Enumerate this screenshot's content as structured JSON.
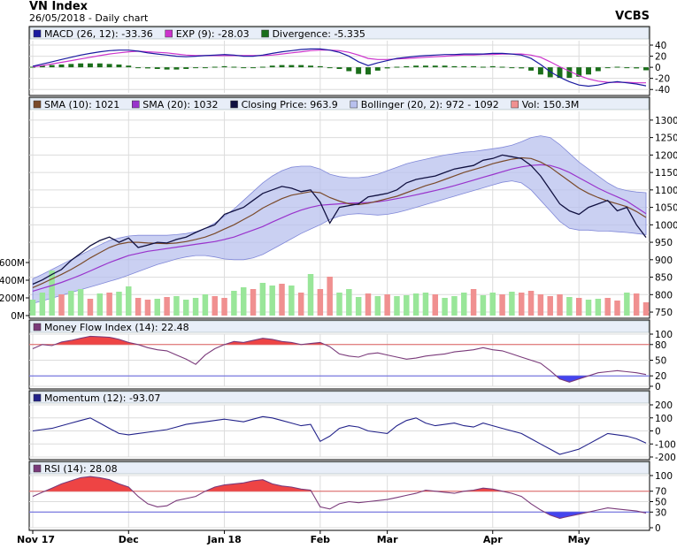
{
  "header": {
    "title": "VN Index",
    "subtitle": "26/05/2018 - Daily chart",
    "brand": "VCBS"
  },
  "colors": {
    "pane_bg": "#ffffff",
    "grid": "#dcdcdc",
    "legend_bg": "#e8eef8",
    "macd": "#1a1aa0",
    "exp": "#cc33cc",
    "divergence": "#1a6e1a",
    "sma10": "#7a4a2a",
    "sma20": "#9933cc",
    "close": "#101040",
    "bollinger_fill": "#b8c0ee",
    "bollinger_line": "#8088d8",
    "vol_up": "#99e699",
    "vol_down": "#f09090",
    "mfi_line": "#7a3a7a",
    "mfi_fill_hi": "#ee4444",
    "mfi_fill_lo": "#4444ee",
    "momentum": "#22228a",
    "rsi_line": "#7a3a7a",
    "hline_red": "#e06060",
    "hline_blue": "#6060e0"
  },
  "chart_data": [
    {
      "type": "line",
      "pane": "macd",
      "legend": [
        {
          "key": "macd",
          "label": "MACD (26, 12): -33.36"
        },
        {
          "key": "exp",
          "label": "EXP (9): -28.03"
        },
        {
          "key": "divergence",
          "label": "Divergence: -5.335"
        }
      ],
      "yticks": [
        40,
        20,
        0,
        -20,
        -40
      ],
      "ylim": [
        -46,
        48
      ],
      "series": [
        {
          "key": "macd",
          "values": [
            2,
            6,
            10,
            14,
            18,
            22,
            25,
            28,
            30,
            31,
            31,
            29,
            26,
            24,
            22,
            20,
            19,
            20,
            21,
            22,
            23,
            22,
            20,
            20,
            22,
            25,
            28,
            30,
            32,
            33,
            33,
            31,
            27,
            20,
            10,
            3,
            8,
            12,
            16,
            18,
            20,
            21,
            22,
            23,
            23,
            24,
            24,
            24,
            25,
            25,
            24,
            22,
            16,
            5,
            -8,
            -18,
            -26,
            -32,
            -34,
            -32,
            -28,
            -26,
            -28,
            -30,
            -33.36
          ]
        },
        {
          "key": "exp",
          "values": [
            1,
            3,
            6,
            9,
            12,
            15,
            18,
            21,
            24,
            26,
            28,
            29,
            28,
            27,
            26,
            24,
            22,
            21,
            21,
            21,
            21,
            21,
            21,
            21,
            21,
            22,
            24,
            26,
            28,
            30,
            31,
            31,
            30,
            27,
            22,
            16,
            14,
            14,
            15,
            16,
            17,
            18,
            19,
            20,
            21,
            22,
            22,
            23,
            23,
            24,
            24,
            24,
            22,
            18,
            10,
            1,
            -7,
            -15,
            -21,
            -25,
            -27,
            -27,
            -27,
            -28,
            -28.03
          ]
        },
        {
          "key": "divergence",
          "type": "bar",
          "values": [
            1,
            3,
            4,
            5,
            6,
            7,
            7,
            7,
            6,
            5,
            3,
            0,
            -2,
            -3,
            -4,
            -4,
            -3,
            -1,
            0,
            1,
            2,
            1,
            -1,
            -1,
            1,
            3,
            4,
            4,
            4,
            3,
            2,
            0,
            -3,
            -7,
            -12,
            -13,
            -6,
            -2,
            1,
            2,
            3,
            3,
            3,
            3,
            2,
            2,
            2,
            1,
            2,
            1,
            0,
            -2,
            -6,
            -13,
            -18,
            -19,
            -19,
            -17,
            -13,
            -7,
            -1,
            1,
            -1,
            -2,
            -5.335
          ]
        }
      ]
    },
    {
      "type": "line",
      "pane": "price",
      "legend": [
        {
          "key": "sma10",
          "label": "SMA (10): 1021"
        },
        {
          "key": "sma20",
          "label": "SMA (20): 1032"
        },
        {
          "key": "close",
          "label": "Closing Price: 963.9"
        },
        {
          "key": "bollinger_fill",
          "label": "Bollinger (20, 2): 972 - 1092"
        },
        {
          "key": "vol_down",
          "label": "Vol: 150.3M"
        }
      ],
      "yticks_right": [
        1300,
        1250,
        1200,
        1150,
        1100,
        1050,
        1000,
        950,
        900,
        850,
        800,
        750
      ],
      "ylim": [
        740,
        1325
      ],
      "vol_ticks_left": [
        "600M",
        "400M",
        "200M",
        "0M"
      ],
      "vol_ticks_values": [
        600,
        400,
        200,
        0
      ],
      "vol_max_label": 600,
      "series": [
        {
          "key": "close",
          "values": [
            830,
            842,
            858,
            872,
            898,
            918,
            940,
            955,
            965,
            950,
            962,
            935,
            942,
            950,
            948,
            958,
            965,
            978,
            990,
            1000,
            1030,
            1040,
            1050,
            1070,
            1090,
            1100,
            1110,
            1105,
            1095,
            1100,
            1065,
            1005,
            1050,
            1055,
            1060,
            1080,
            1085,
            1090,
            1100,
            1120,
            1130,
            1135,
            1140,
            1150,
            1160,
            1165,
            1170,
            1185,
            1190,
            1200,
            1195,
            1190,
            1170,
            1140,
            1100,
            1060,
            1040,
            1030,
            1050,
            1060,
            1070,
            1040,
            1050,
            1000,
            963.9
          ]
        },
        {
          "key": "sma10",
          "values": [
            820,
            832,
            845,
            858,
            872,
            888,
            905,
            920,
            935,
            945,
            950,
            950,
            948,
            947,
            946,
            948,
            952,
            958,
            965,
            975,
            988,
            1000,
            1015,
            1030,
            1048,
            1062,
            1075,
            1085,
            1090,
            1095,
            1092,
            1078,
            1068,
            1060,
            1058,
            1062,
            1068,
            1075,
            1082,
            1092,
            1102,
            1112,
            1120,
            1130,
            1140,
            1150,
            1158,
            1166,
            1175,
            1182,
            1188,
            1192,
            1190,
            1180,
            1165,
            1145,
            1125,
            1105,
            1090,
            1078,
            1068,
            1060,
            1052,
            1038,
            1021
          ]
        },
        {
          "key": "sma20",
          "values": [
            810,
            818,
            826,
            835,
            845,
            856,
            868,
            880,
            892,
            902,
            912,
            918,
            924,
            928,
            932,
            936,
            940,
            944,
            948,
            952,
            958,
            965,
            975,
            985,
            995,
            1008,
            1020,
            1032,
            1042,
            1050,
            1056,
            1058,
            1060,
            1062,
            1063,
            1064,
            1066,
            1070,
            1075,
            1080,
            1086,
            1092,
            1098,
            1105,
            1112,
            1120,
            1128,
            1136,
            1144,
            1152,
            1160,
            1166,
            1170,
            1172,
            1170,
            1162,
            1150,
            1135,
            1120,
            1105,
            1092,
            1080,
            1068,
            1050,
            1032
          ]
        },
        {
          "key": "boll_upper",
          "values": [
            845,
            858,
            872,
            886,
            900,
            914,
            928,
            942,
            955,
            962,
            968,
            970,
            970,
            970,
            970,
            972,
            975,
            980,
            990,
            1005,
            1025,
            1045,
            1070,
            1095,
            1120,
            1140,
            1155,
            1165,
            1168,
            1168,
            1160,
            1145,
            1138,
            1135,
            1135,
            1138,
            1145,
            1155,
            1165,
            1175,
            1182,
            1188,
            1194,
            1200,
            1204,
            1208,
            1210,
            1214,
            1218,
            1222,
            1228,
            1238,
            1250,
            1255,
            1250,
            1230,
            1205,
            1180,
            1160,
            1140,
            1120,
            1105,
            1098,
            1094,
            1092
          ]
        },
        {
          "key": "boll_lower",
          "values": [
            775,
            782,
            790,
            798,
            806,
            814,
            822,
            830,
            838,
            846,
            856,
            866,
            876,
            886,
            894,
            902,
            908,
            912,
            912,
            908,
            902,
            900,
            900,
            905,
            915,
            930,
            945,
            960,
            975,
            988,
            1000,
            1015,
            1025,
            1030,
            1032,
            1030,
            1028,
            1030,
            1035,
            1042,
            1050,
            1058,
            1066,
            1074,
            1082,
            1090,
            1098,
            1106,
            1114,
            1122,
            1126,
            1120,
            1100,
            1070,
            1040,
            1010,
            990,
            985,
            985,
            982,
            982,
            980,
            978,
            975,
            972
          ]
        },
        {
          "key": "volume_M",
          "type": "bar",
          "values": [
            180,
            260,
            510,
            240,
            280,
            300,
            190,
            250,
            260,
            270,
            330,
            200,
            180,
            190,
            210,
            220,
            180,
            200,
            240,
            220,
            200,
            280,
            320,
            300,
            370,
            340,
            360,
            340,
            260,
            470,
            300,
            440,
            260,
            300,
            210,
            250,
            220,
            240,
            220,
            230,
            250,
            260,
            240,
            200,
            220,
            260,
            300,
            230,
            260,
            240,
            270,
            260,
            280,
            240,
            220,
            240,
            210,
            200,
            180,
            190,
            200,
            170,
            260,
            250,
            150.3
          ]
        },
        {
          "key": "volume_up",
          "values": [
            1,
            1,
            1,
            0,
            1,
            1,
            0,
            1,
            0,
            1,
            1,
            0,
            0,
            1,
            0,
            1,
            1,
            1,
            1,
            0,
            0,
            1,
            1,
            0,
            1,
            1,
            0,
            1,
            0,
            1,
            0,
            0,
            1,
            1,
            1,
            0,
            1,
            0,
            1,
            1,
            1,
            1,
            0,
            1,
            1,
            1,
            0,
            1,
            1,
            0,
            1,
            0,
            0,
            0,
            0,
            0,
            1,
            0,
            1,
            1,
            0,
            0,
            1,
            0,
            0
          ]
        }
      ]
    },
    {
      "type": "area",
      "pane": "mfi",
      "legend": [
        {
          "key": "mfi_line",
          "label": "Money Flow Index (14): 22.48"
        }
      ],
      "yticks": [
        100,
        80,
        50,
        20,
        0
      ],
      "ylim": [
        0,
        100
      ],
      "levels": {
        "upper": 80,
        "lower": 20
      },
      "series": [
        {
          "key": "mfi",
          "values": [
            72,
            80,
            78,
            85,
            88,
            92,
            96,
            95,
            94,
            90,
            84,
            80,
            74,
            70,
            68,
            60,
            52,
            42,
            60,
            72,
            80,
            86,
            84,
            88,
            92,
            90,
            86,
            84,
            80,
            82,
            84,
            76,
            62,
            58,
            56,
            62,
            64,
            60,
            56,
            52,
            54,
            58,
            60,
            62,
            66,
            68,
            70,
            74,
            70,
            68,
            62,
            56,
            50,
            44,
            30,
            14,
            8,
            14,
            20,
            26,
            28,
            30,
            28,
            26,
            22.48
          ]
        }
      ]
    },
    {
      "type": "line",
      "pane": "momentum",
      "legend": [
        {
          "key": "momentum",
          "label": "Momentum (12): -93.07"
        }
      ],
      "yticks": [
        200,
        100,
        0,
        -100,
        -200
      ],
      "ylim": [
        -200,
        200
      ],
      "series": [
        {
          "key": "momentum",
          "values": [
            0,
            10,
            20,
            40,
            60,
            80,
            100,
            60,
            20,
            -20,
            -30,
            -20,
            -10,
            0,
            10,
            30,
            50,
            60,
            70,
            80,
            90,
            80,
            70,
            90,
            110,
            100,
            80,
            60,
            40,
            50,
            -80,
            -40,
            20,
            40,
            30,
            0,
            -10,
            -20,
            40,
            80,
            100,
            60,
            40,
            50,
            60,
            40,
            30,
            60,
            40,
            20,
            0,
            -20,
            -60,
            -100,
            -140,
            -180,
            -160,
            -140,
            -100,
            -60,
            -20,
            -30,
            -40,
            -60,
            -93.07
          ]
        }
      ]
    },
    {
      "type": "area",
      "pane": "rsi",
      "legend": [
        {
          "key": "rsi_line",
          "label": "RSI (14): 28.08"
        }
      ],
      "yticks": [
        100,
        70,
        50,
        30,
        0
      ],
      "ylim": [
        0,
        100
      ],
      "levels": {
        "upper": 70,
        "lower": 30
      },
      "series": [
        {
          "key": "rsi",
          "values": [
            60,
            68,
            76,
            84,
            90,
            96,
            98,
            96,
            92,
            84,
            78,
            60,
            46,
            40,
            42,
            52,
            56,
            60,
            70,
            78,
            82,
            84,
            86,
            90,
            92,
            84,
            80,
            78,
            74,
            72,
            40,
            36,
            46,
            50,
            48,
            50,
            52,
            54,
            58,
            62,
            66,
            72,
            70,
            68,
            66,
            70,
            72,
            76,
            74,
            70,
            66,
            60,
            46,
            34,
            24,
            18,
            22,
            26,
            30,
            34,
            38,
            36,
            34,
            32,
            28.08
          ]
        }
      ]
    }
  ],
  "xaxis": {
    "labels": [
      {
        "label": "Nov 17",
        "index": 0
      },
      {
        "label": "Dec",
        "index": 10
      },
      {
        "label": "Jan 18",
        "index": 20
      },
      {
        "label": "Feb",
        "index": 30
      },
      {
        "label": "Mar",
        "index": 37
      },
      {
        "label": "Apr",
        "index": 48
      },
      {
        "label": "May",
        "index": 57
      }
    ]
  }
}
